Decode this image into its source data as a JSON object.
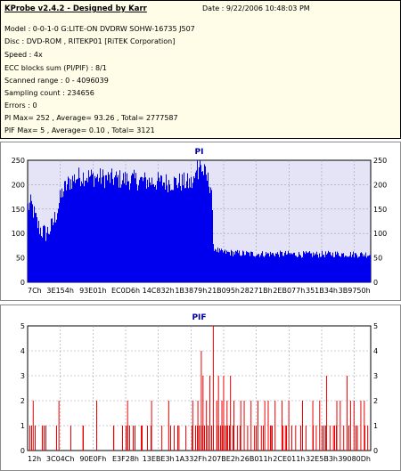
{
  "info": {
    "title": "KProbe v2.4.2 - Designed by Karr",
    "date": "Date : 9/22/2006 10:48:03 PM",
    "lines": [
      "Model : 0-0-1-0 G:LITE-ON DVDRW SOHW-16735 J507",
      "Disc : DVD-ROM , RITEKP01 [RiTEK Corporation]",
      "Speed : 4x",
      "ECC blocks sum (PI/PIF) : 8/1",
      "Scanned range : 0 - 4096039",
      "Sampling count : 234656",
      "Errors : 0",
      "PI Max= 252 , Average= 93.26 , Total= 2777587",
      "PIF Max= 5 , Average= 0.10 , Total= 3121"
    ]
  },
  "chart_data": [
    {
      "type": "area",
      "title": "PI",
      "color": "#0000ee",
      "background": "#e4e4f6",
      "ylim": [
        0,
        250
      ],
      "y_ticks": [
        0,
        50,
        100,
        150,
        200,
        250
      ],
      "x_tick_labels": [
        "7Ch",
        "3E154h",
        "93E01h",
        "EC0D6h",
        "14C832h",
        "1B3879h",
        "21B095h",
        "28271Bh",
        "2EB077h",
        "351B34h",
        "3B9750h"
      ],
      "profile": [
        [
          0,
          155
        ],
        [
          1,
          160
        ],
        [
          2,
          135
        ],
        [
          3,
          115
        ],
        [
          4,
          105
        ],
        [
          5,
          100
        ],
        [
          6,
          105
        ],
        [
          7,
          115
        ],
        [
          8,
          135
        ],
        [
          9,
          160
        ],
        [
          10,
          185
        ],
        [
          12,
          205
        ],
        [
          14,
          215
        ],
        [
          16,
          218
        ],
        [
          20,
          215
        ],
        [
          25,
          212
        ],
        [
          30,
          210
        ],
        [
          35,
          207
        ],
        [
          40,
          205
        ],
        [
          45,
          205
        ],
        [
          48,
          202
        ],
        [
          49,
          220
        ],
        [
          50,
          238
        ],
        [
          51,
          230
        ],
        [
          52,
          215
        ],
        [
          53.5,
          195
        ],
        [
          54,
          72
        ],
        [
          56,
          62
        ],
        [
          60,
          60
        ],
        [
          65,
          58
        ],
        [
          70,
          58
        ],
        [
          75,
          58
        ],
        [
          80,
          57
        ],
        [
          85,
          57
        ],
        [
          90,
          58
        ],
        [
          95,
          57
        ],
        [
          100,
          57
        ]
      ],
      "max_value": 252
    },
    {
      "type": "bar",
      "title": "PIF",
      "color": "#ee0000",
      "background": "#ffffff",
      "ylim": [
        0,
        5
      ],
      "y_ticks": [
        0,
        1,
        2,
        3,
        4,
        5
      ],
      "x_tick_labels": [
        "12h",
        "3C04Ch",
        "90E0Fh",
        "E3F28h",
        "13EBE3h",
        "1A332Fh",
        "207BE2h",
        "26B011h",
        "2CE011h",
        "32E5B3h",
        "39080Dh"
      ],
      "spikes": [
        [
          1.5,
          2
        ],
        [
          9,
          2
        ],
        [
          16,
          1
        ],
        [
          20,
          2
        ],
        [
          25,
          1
        ],
        [
          29,
          2
        ],
        [
          33,
          1
        ],
        [
          36,
          2
        ],
        [
          39,
          1
        ],
        [
          41,
          2
        ],
        [
          44,
          1
        ],
        [
          46,
          1
        ],
        [
          48,
          2
        ],
        [
          49.5,
          2
        ],
        [
          50.5,
          4
        ],
        [
          51,
          3
        ],
        [
          52,
          2
        ],
        [
          53,
          3
        ],
        [
          54,
          5
        ],
        [
          55,
          2
        ],
        [
          55.5,
          3
        ],
        [
          56.5,
          2
        ],
        [
          57,
          3
        ],
        [
          58,
          2
        ],
        [
          59,
          3
        ],
        [
          60,
          2
        ],
        [
          61,
          1
        ],
        [
          62,
          2
        ],
        [
          63,
          2
        ],
        [
          64,
          1
        ],
        [
          65,
          2
        ],
        [
          66,
          1
        ],
        [
          67,
          2
        ],
        [
          68,
          1
        ],
        [
          69,
          2
        ],
        [
          70,
          2
        ],
        [
          71,
          1
        ],
        [
          72,
          2
        ],
        [
          74,
          2
        ],
        [
          75,
          1
        ],
        [
          76,
          2
        ],
        [
          78,
          1
        ],
        [
          80,
          2
        ],
        [
          81,
          1
        ],
        [
          83,
          2
        ],
        [
          84,
          1
        ],
        [
          85,
          2
        ],
        [
          87,
          3
        ],
        [
          88,
          1
        ],
        [
          89,
          1
        ],
        [
          90,
          2
        ],
        [
          91,
          2
        ],
        [
          92,
          1
        ],
        [
          93,
          3
        ],
        [
          94,
          2
        ],
        [
          95,
          2
        ],
        [
          96,
          1
        ],
        [
          97,
          2
        ],
        [
          98,
          2
        ],
        [
          99,
          1
        ]
      ],
      "baseline_density": 1
    }
  ]
}
